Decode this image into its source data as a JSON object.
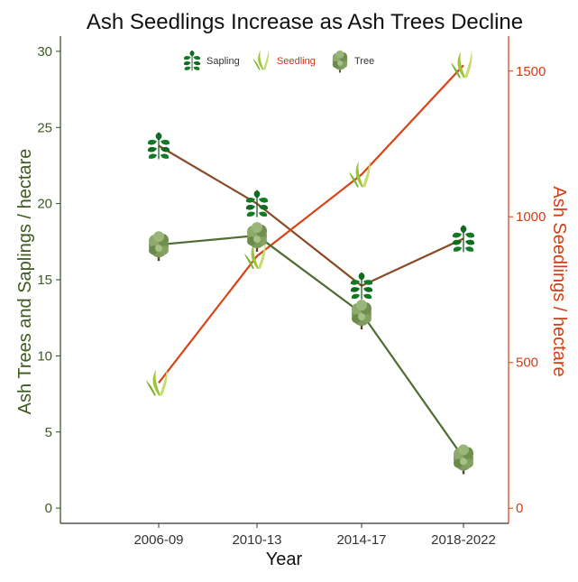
{
  "chart_data": {
    "type": "line",
    "title": "Ash Seedlings Increase as Ash Trees Decline",
    "xlabel": "Year",
    "ylabel": "Ash Trees and Saplings / hectare",
    "ylabel_right": "Ash Seedlings / hectare",
    "categories": [
      "2006-09",
      "2010-13",
      "2014-17",
      "2018-2022"
    ],
    "ylim": [
      -1,
      31
    ],
    "yticks": [
      "0",
      "5",
      "10",
      "15",
      "20",
      "25",
      "30"
    ],
    "ylim_right": [
      -52,
      1620
    ],
    "yticks_right": [
      "0",
      "500",
      "1000",
      "1500"
    ],
    "legend_position": "top",
    "series": [
      {
        "name": "Sapling",
        "axis": "left",
        "marker": "leaf-cluster",
        "values": [
          23.8,
          20.0,
          14.6,
          17.7
        ]
      },
      {
        "name": "Seedling",
        "axis": "right",
        "marker": "grass-blade",
        "values": [
          430,
          865,
          1145,
          1520
        ]
      },
      {
        "name": "Tree",
        "axis": "left",
        "marker": "tree",
        "values": [
          17.3,
          17.9,
          12.8,
          3.3
        ]
      }
    ],
    "colors": {
      "sapling_line": "#8a4a26",
      "seedling_line": "#d94416",
      "tree_line": "#4f6d33",
      "left_axis_text": "#3e5a1e",
      "right_axis_text": "#d43d14",
      "axis_line_left": "#2f4a16",
      "axis_line_right": "#d43d14"
    }
  }
}
